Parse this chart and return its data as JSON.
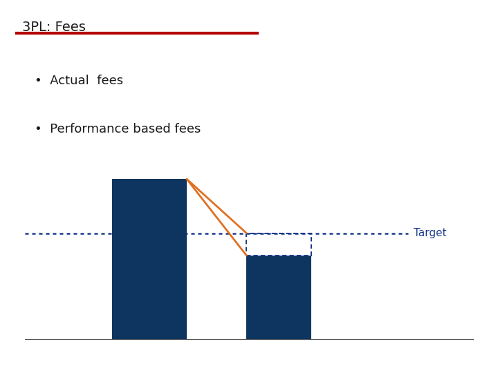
{
  "title": "3PL: Fees",
  "title_color": "#1a1a1a",
  "title_underline_color": "#b50000",
  "bullet1": "Actual  fees",
  "bullet2": "Performance based fees",
  "bullet_color": "#1a1a1a",
  "bar_color": "#0d3560",
  "target_line_color": "#1a3a8c",
  "target_label": "Target",
  "target_label_color": "#1a3a8c",
  "orange_line_color": "#e07020",
  "background_color": "#ffffff"
}
